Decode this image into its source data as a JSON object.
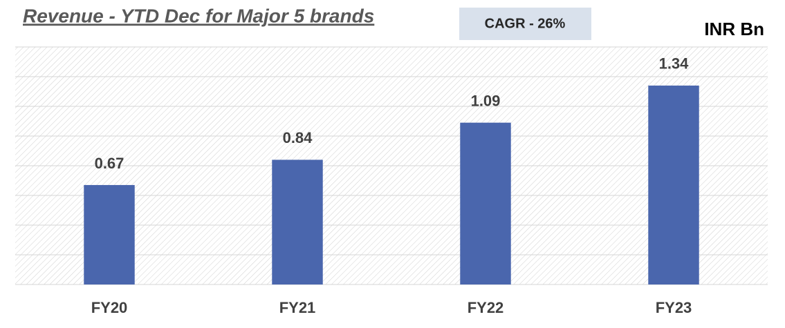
{
  "chart_data": {
    "type": "bar",
    "title": "Revenue - YTD Dec for Major 5 brands",
    "annotation": "CAGR - 26%",
    "unit_label": "INR Bn",
    "categories": [
      "FY20",
      "FY21",
      "FY22",
      "FY23"
    ],
    "values": [
      0.67,
      0.84,
      1.09,
      1.34
    ],
    "color": "#4a66ad",
    "ylim": [
      0,
      1.6
    ],
    "yticks": [
      0,
      0.2,
      0.4,
      0.6,
      0.8,
      1.0,
      1.2,
      1.4,
      1.6
    ],
    "grid": true
  }
}
